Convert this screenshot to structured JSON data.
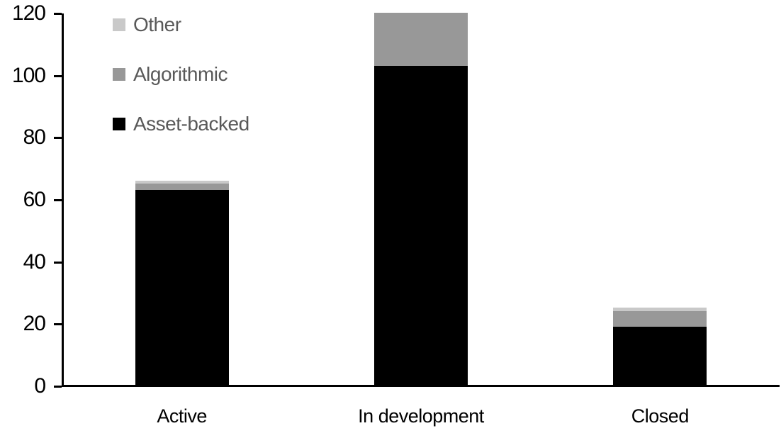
{
  "chart_data": {
    "type": "bar",
    "stacked": true,
    "title": "",
    "xlabel": "",
    "ylabel": "",
    "categories": [
      "Active",
      "In development",
      "Closed"
    ],
    "series": [
      {
        "name": "Asset-backed",
        "color": "#000000",
        "values": [
          63,
          103,
          19
        ]
      },
      {
        "name": "Algorithmic",
        "color": "#989898",
        "values": [
          2,
          17,
          5
        ]
      },
      {
        "name": "Other",
        "color": "#c9c9c9",
        "values": [
          1,
          0,
          1
        ]
      }
    ],
    "totals": [
      66,
      120,
      25
    ],
    "ylim": [
      0,
      120
    ],
    "yticks": [
      0,
      20,
      40,
      60,
      80,
      100,
      120
    ],
    "grid": false,
    "legend_position": "top-left",
    "legend_order": [
      "Other",
      "Algorithmic",
      "Asset-backed"
    ],
    "axis_color": "#000000",
    "tick_label_color": "#000000",
    "legend_text_color": "#595959",
    "background_color": "#ffffff"
  }
}
